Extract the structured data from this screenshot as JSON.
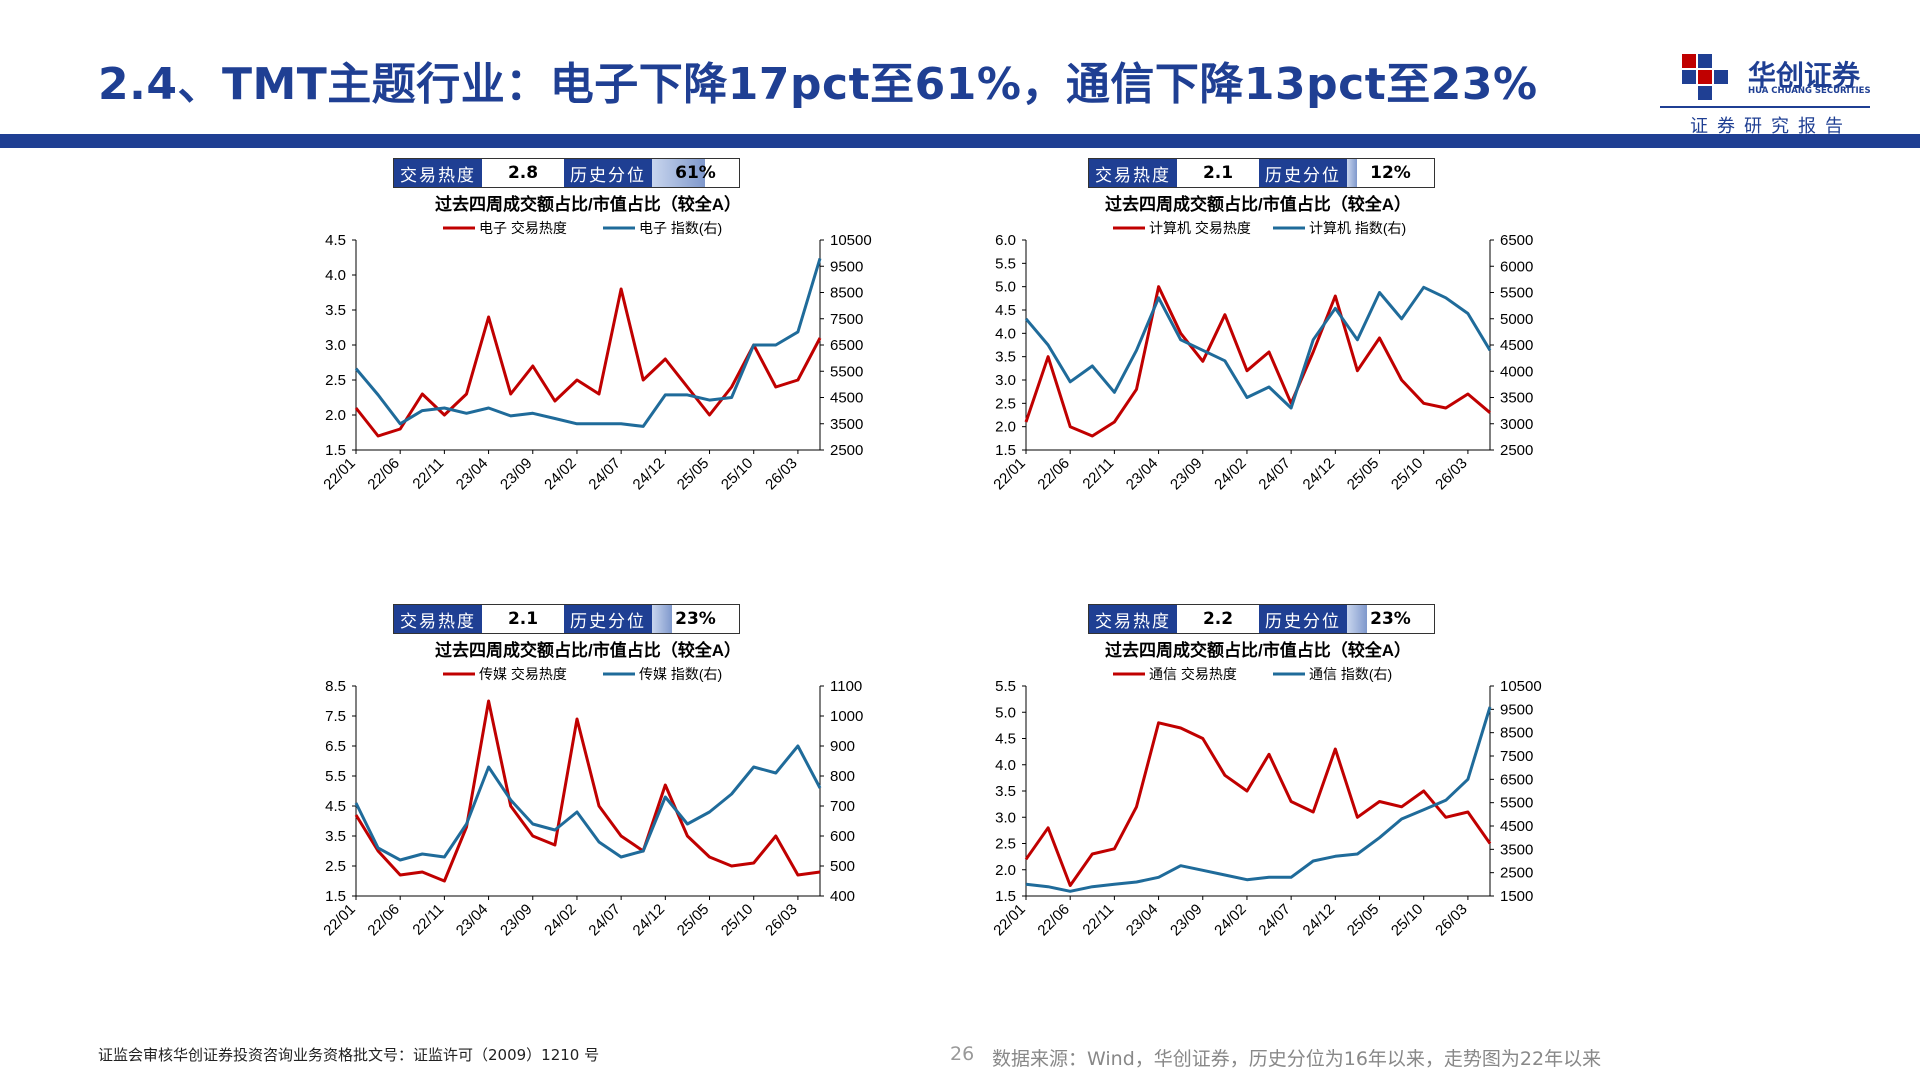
{
  "page": {
    "title": "2.4、TMT主题行业：电子下降17pct至61%，通信下降13pct至23%",
    "logo_cn": "华创证券",
    "logo_en": "HUA CHUANG SECURITIES",
    "logo_sub": "证券研究报告",
    "page_number": "26",
    "footer_left": "证监会审核华创证券投资咨询业务资格批文号：证监许可（2009）1210 号",
    "footer_right": "数据来源：Wind，华创证券，历史分位为16年以来，走势图为22年以来",
    "brand_color": "#1f3f93"
  },
  "panels": [
    {
      "heat_label": "交易热度",
      "heat_value": "2.8",
      "pct_label": "历史分位",
      "pct_value": "61%",
      "pct_fill": 0.61
    },
    {
      "heat_label": "交易热度",
      "heat_value": "2.1",
      "pct_label": "历史分位",
      "pct_value": "12%",
      "pct_fill": 0.12
    },
    {
      "heat_label": "交易热度",
      "heat_value": "2.1",
      "pct_label": "历史分位",
      "pct_value": "23%",
      "pct_fill": 0.23
    },
    {
      "heat_label": "交易热度",
      "heat_value": "2.2",
      "pct_label": "历史分位",
      "pct_value": "23%",
      "pct_fill": 0.23
    }
  ],
  "chart_data": [
    {
      "type": "line",
      "title": "过去四周成交额占比/市值占比（较全A）",
      "x": [
        "22/01",
        "22/03",
        "22/06",
        "22/08",
        "22/11",
        "23/01",
        "23/04",
        "23/06",
        "23/09",
        "23/11",
        "24/02",
        "24/04",
        "24/07",
        "24/09",
        "24/12",
        "25/02",
        "25/05",
        "25/07",
        "25/10",
        "25/12",
        "26/03",
        "26/05"
      ],
      "xticks": [
        "22/01",
        "22/06",
        "22/11",
        "23/04",
        "23/09",
        "24/02",
        "24/07",
        "24/12",
        "25/05",
        "25/10",
        "26/03"
      ],
      "ylim": [
        1.5,
        4.5
      ],
      "y_ticks": [
        "1.5",
        "2.0",
        "2.5",
        "3.0",
        "3.5",
        "4.0",
        "4.5"
      ],
      "y2lim": [
        2500,
        10500
      ],
      "y2_ticks": [
        "2500",
        "3500",
        "4500",
        "5500",
        "6500",
        "7500",
        "8500",
        "9500",
        "10500"
      ],
      "series": [
        {
          "name": "电子 交易热度",
          "color": "#c00000",
          "axis": "left",
          "values": [
            2.1,
            1.7,
            1.8,
            2.3,
            2.0,
            2.3,
            3.4,
            2.3,
            2.7,
            2.2,
            2.5,
            2.3,
            3.8,
            2.5,
            2.8,
            2.4,
            2.0,
            2.4,
            3.0,
            2.4,
            2.5,
            3.1
          ]
        },
        {
          "name": "电子 指数(右)",
          "color": "#1f6b9a",
          "axis": "right",
          "values": [
            5600,
            4600,
            3500,
            4000,
            4100,
            3900,
            4100,
            3800,
            3900,
            3700,
            3500,
            3500,
            3500,
            3400,
            4600,
            4600,
            4400,
            4500,
            6500,
            6500,
            7000,
            9800
          ]
        }
      ]
    },
    {
      "type": "line",
      "title": "过去四周成交额占比/市值占比（较全A）",
      "x": [
        "22/01",
        "22/03",
        "22/06",
        "22/08",
        "22/11",
        "23/01",
        "23/04",
        "23/06",
        "23/09",
        "23/11",
        "24/02",
        "24/04",
        "24/07",
        "24/09",
        "24/12",
        "25/02",
        "25/05",
        "25/07",
        "25/10",
        "25/12",
        "26/03",
        "26/05"
      ],
      "xticks": [
        "22/01",
        "22/06",
        "22/11",
        "23/04",
        "23/09",
        "24/02",
        "24/07",
        "24/12",
        "25/05",
        "25/10",
        "26/03"
      ],
      "ylim": [
        1.5,
        6.0
      ],
      "y_ticks": [
        "1.5",
        "2.0",
        "2.5",
        "3.0",
        "3.5",
        "4.0",
        "4.5",
        "5.0",
        "5.5",
        "6.0"
      ],
      "y2lim": [
        2500,
        6500
      ],
      "y2_ticks": [
        "2500",
        "3000",
        "3500",
        "4000",
        "4500",
        "5000",
        "5500",
        "6000",
        "6500"
      ],
      "series": [
        {
          "name": "计算机 交易热度",
          "color": "#c00000",
          "axis": "left",
          "values": [
            2.1,
            3.5,
            2.0,
            1.8,
            2.1,
            2.8,
            5.0,
            4.0,
            3.4,
            4.4,
            3.2,
            3.6,
            2.5,
            3.6,
            4.8,
            3.2,
            3.9,
            3.0,
            2.5,
            2.4,
            2.7,
            2.3
          ]
        },
        {
          "name": "计算机 指数(右)",
          "color": "#1f6b9a",
          "axis": "right",
          "values": [
            5000,
            4500,
            3800,
            4100,
            3600,
            4400,
            5400,
            4600,
            4400,
            4200,
            3500,
            3700,
            3300,
            4600,
            5200,
            4600,
            5500,
            5000,
            5600,
            5400,
            5100,
            4400
          ]
        }
      ]
    },
    {
      "type": "line",
      "title": "过去四周成交额占比/市值占比（较全A）",
      "x": [
        "22/01",
        "22/03",
        "22/06",
        "22/08",
        "22/11",
        "23/01",
        "23/04",
        "23/06",
        "23/09",
        "23/11",
        "24/02",
        "24/04",
        "24/07",
        "24/09",
        "24/12",
        "25/02",
        "25/05",
        "25/07",
        "25/10",
        "25/12",
        "26/03",
        "26/05"
      ],
      "xticks": [
        "22/01",
        "22/06",
        "22/11",
        "23/04",
        "23/09",
        "24/02",
        "24/07",
        "24/12",
        "25/05",
        "25/10",
        "26/03"
      ],
      "ylim": [
        1.5,
        8.5
      ],
      "y_ticks": [
        "1.5",
        "2.5",
        "3.5",
        "4.5",
        "5.5",
        "6.5",
        "7.5",
        "8.5"
      ],
      "y2lim": [
        400,
        1100
      ],
      "y2_ticks": [
        "400",
        "500",
        "600",
        "700",
        "800",
        "900",
        "1000",
        "1100"
      ],
      "series": [
        {
          "name": "传媒 交易热度",
          "color": "#c00000",
          "axis": "left",
          "values": [
            4.2,
            3.0,
            2.2,
            2.3,
            2.0,
            3.8,
            8.0,
            4.5,
            3.5,
            3.2,
            7.4,
            4.5,
            3.5,
            3.0,
            5.2,
            3.5,
            2.8,
            2.5,
            2.6,
            3.5,
            2.2,
            2.3
          ]
        },
        {
          "name": "传媒 指数(右)",
          "color": "#1f6b9a",
          "axis": "right",
          "values": [
            710,
            560,
            520,
            540,
            530,
            640,
            830,
            720,
            640,
            620,
            680,
            580,
            530,
            550,
            730,
            640,
            680,
            740,
            830,
            810,
            900,
            760
          ]
        }
      ]
    },
    {
      "type": "line",
      "title": "过去四周成交额占比/市值占比（较全A）",
      "x": [
        "22/01",
        "22/03",
        "22/06",
        "22/08",
        "22/11",
        "23/01",
        "23/04",
        "23/06",
        "23/09",
        "23/11",
        "24/02",
        "24/04",
        "24/07",
        "24/09",
        "24/12",
        "25/02",
        "25/05",
        "25/07",
        "25/10",
        "25/12",
        "26/03",
        "26/05"
      ],
      "xticks": [
        "22/01",
        "22/06",
        "22/11",
        "23/04",
        "23/09",
        "24/02",
        "24/07",
        "24/12",
        "25/05",
        "25/10",
        "26/03"
      ],
      "ylim": [
        1.5,
        5.5
      ],
      "y_ticks": [
        "1.5",
        "2.0",
        "2.5",
        "3.0",
        "3.5",
        "4.0",
        "4.5",
        "5.0",
        "5.5"
      ],
      "y2lim": [
        1500,
        10500
      ],
      "y2_ticks": [
        "1500",
        "2500",
        "3500",
        "4500",
        "5500",
        "6500",
        "7500",
        "8500",
        "9500",
        "10500"
      ],
      "series": [
        {
          "name": "通信 交易热度",
          "color": "#c00000",
          "axis": "left",
          "values": [
            2.2,
            2.8,
            1.7,
            2.3,
            2.4,
            3.2,
            4.8,
            4.7,
            4.5,
            3.8,
            3.5,
            4.2,
            3.3,
            3.1,
            4.3,
            3.0,
            3.3,
            3.2,
            3.5,
            3.0,
            3.1,
            2.5
          ]
        },
        {
          "name": "通信 指数(右)",
          "color": "#1f6b9a",
          "axis": "right",
          "values": [
            2000,
            1900,
            1700,
            1900,
            2000,
            2100,
            2300,
            2800,
            2600,
            2400,
            2200,
            2300,
            2300,
            3000,
            3200,
            3300,
            4000,
            4800,
            5200,
            5600,
            6500,
            9600
          ]
        }
      ]
    }
  ]
}
